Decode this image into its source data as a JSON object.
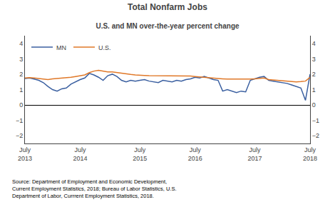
{
  "chart_data": {
    "type": "line",
    "title": "Total Nonfarm Jobs",
    "subtitle": "U.S. and MN over-the-year percent change",
    "annotations": [
      "Source: Department of Employment and Economic Development,\nCurrent Employment Statistics, 2018; Bureau of Labor Statistics, U.S.\nDepartment of Labor, Currrent Employment Statistics, 2018."
    ],
    "categories": [
      "July\n2013",
      null,
      null,
      null,
      null,
      null,
      null,
      null,
      null,
      null,
      null,
      null,
      "July\n2014",
      null,
      null,
      null,
      null,
      null,
      null,
      null,
      null,
      null,
      null,
      null,
      null,
      "July\n2015",
      null,
      null,
      null,
      null,
      null,
      null,
      null,
      null,
      null,
      null,
      null,
      "July\n2016",
      null,
      null,
      null,
      null,
      null,
      null,
      null,
      null,
      null,
      null,
      null,
      null,
      "July\n2017",
      null,
      null,
      null,
      null,
      null,
      null,
      null,
      null,
      null,
      null,
      null,
      "July\n2018"
    ],
    "series": [
      {
        "name": "MN",
        "color": "#3a5fa0",
        "values": [
          1.72,
          1.75,
          1.68,
          1.6,
          1.45,
          1.2,
          1.0,
          0.9,
          1.05,
          1.1,
          1.35,
          1.5,
          1.65,
          1.75,
          2.05,
          1.95,
          1.8,
          1.6,
          1.9,
          2.0,
          1.85,
          1.6,
          1.5,
          1.6,
          1.55,
          1.6,
          1.65,
          1.55,
          1.5,
          1.45,
          1.6,
          1.55,
          1.5,
          1.6,
          1.55,
          1.65,
          1.7,
          1.8,
          1.75,
          1.85,
          1.75,
          1.65,
          1.6,
          0.9,
          1.0,
          0.9,
          0.8,
          0.9,
          0.85,
          1.6,
          1.7,
          1.8,
          1.85,
          1.6,
          1.55,
          1.5,
          1.45,
          1.4,
          1.3,
          1.2,
          1.1,
          0.3,
          2.0
        ]
      },
      {
        "name": "U.S.",
        "color": "#e07828",
        "values": [
          1.75,
          1.78,
          1.75,
          1.72,
          1.68,
          1.65,
          1.7,
          1.72,
          1.75,
          1.78,
          1.8,
          1.85,
          1.9,
          1.95,
          2.1,
          2.2,
          2.25,
          2.2,
          2.15,
          2.15,
          2.1,
          2.05,
          2.0,
          1.98,
          1.95,
          1.95,
          1.92,
          1.9,
          1.9,
          1.88,
          1.88,
          1.87,
          1.87,
          1.88,
          1.88,
          1.9,
          1.88,
          1.85,
          1.82,
          1.8,
          1.78,
          1.75,
          1.72,
          1.7,
          1.68,
          1.68,
          1.65,
          1.65,
          1.65,
          1.68,
          1.7,
          1.72,
          1.75,
          1.65,
          1.62,
          1.6,
          1.58,
          1.55,
          1.52,
          1.5,
          1.52,
          1.55,
          1.8
        ]
      }
    ],
    "ylim": [
      -2.5,
      4.5
    ],
    "yticks": [
      -2,
      -1,
      0,
      1,
      2,
      3,
      4
    ],
    "y2lim": [
      -2.5,
      4.5
    ],
    "y2ticks": [
      -2,
      -1,
      0,
      1,
      2,
      3,
      4
    ],
    "grid": false,
    "legend": "upper left"
  }
}
